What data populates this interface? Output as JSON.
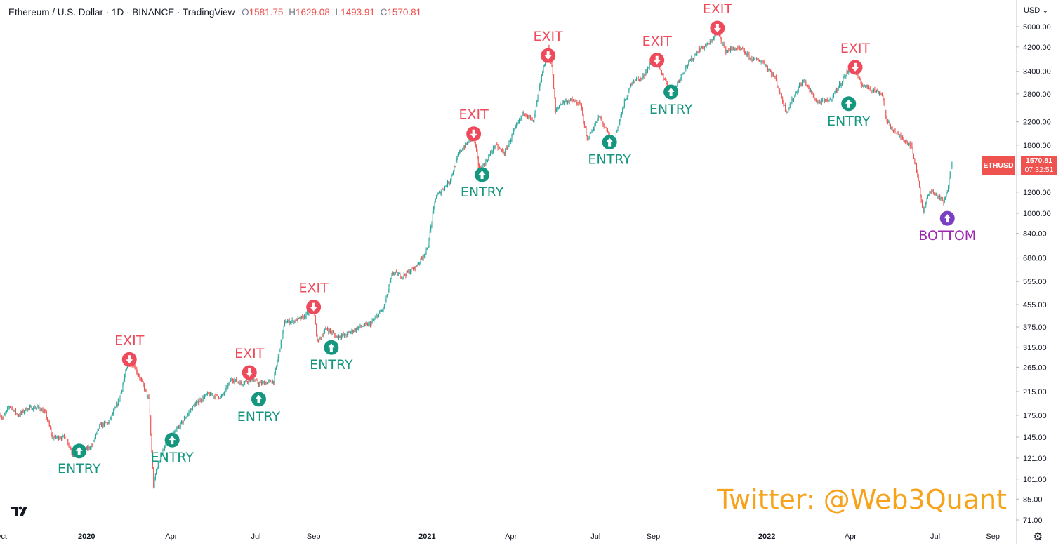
{
  "header": {
    "title": "Ethereum / U.S. Dollar · 1D · BINANCE · TradingView",
    "ohlc": [
      {
        "k": "O",
        "v": "1581.75"
      },
      {
        "k": "H",
        "v": "1629.08"
      },
      {
        "k": "L",
        "v": "1493.91"
      },
      {
        "k": "C",
        "v": "1570.81"
      }
    ]
  },
  "price_axis": {
    "currency": "USD",
    "last_symbol": "ETHUSD",
    "last_price": "1570.81",
    "countdown": "07:32:51"
  },
  "watermark": "Twitter: @Web3Quant",
  "colors": {
    "up": "#26a69a",
    "down": "#ef5350",
    "exit": "#ef4a5b",
    "entry": "#14967f",
    "bottom": "#7b3fc4",
    "bottom_text": "#9c27b0",
    "watermark": "#f7a21b"
  },
  "icons": {
    "logo": "tradingview-logo-icon",
    "settings": "gear-icon"
  },
  "chart_data": {
    "type": "candlestick",
    "title": "Ethereum / U.S. Dollar · 1D · BINANCE · TradingView",
    "y_scale": "log",
    "ylim": [
      71,
      5000
    ],
    "xlim": [
      "2019-09-30",
      "2022-09-25"
    ],
    "y_ticks": [
      "5000.00",
      "4200.00",
      "3400.00",
      "2800.00",
      "2200.00",
      "1800.00",
      "1200.00",
      "1000.00",
      "840.00",
      "680.00",
      "555.00",
      "455.00",
      "375.00",
      "315.00",
      "265.00",
      "215.00",
      "175.00",
      "145.00",
      "121.00",
      "101.00",
      "85.00",
      "71.00"
    ],
    "x_ticks": [
      {
        "date": "2019-10-01",
        "label": "Oct"
      },
      {
        "date": "2020-01-01",
        "label": "2020"
      },
      {
        "date": "2020-04-01",
        "label": "Apr"
      },
      {
        "date": "2020-07-01",
        "label": "Jul"
      },
      {
        "date": "2020-09-01",
        "label": "Sep"
      },
      {
        "date": "2021-01-01",
        "label": "2021"
      },
      {
        "date": "2021-04-01",
        "label": "Apr"
      },
      {
        "date": "2021-07-01",
        "label": "Jul"
      },
      {
        "date": "2021-09-01",
        "label": "Sep"
      },
      {
        "date": "2022-01-01",
        "label": "2022"
      },
      {
        "date": "2022-04-01",
        "label": "Apr"
      },
      {
        "date": "2022-07-01",
        "label": "Jul"
      },
      {
        "date": "2022-09-01",
        "label": "Sep"
      }
    ],
    "price_path": [
      [
        "2019-09-30",
        176
      ],
      [
        "2019-10-03",
        170
      ],
      [
        "2019-10-10",
        190
      ],
      [
        "2019-10-20",
        175
      ],
      [
        "2019-10-28",
        185
      ],
      [
        "2019-11-10",
        188
      ],
      [
        "2019-11-18",
        178
      ],
      [
        "2019-11-25",
        145
      ],
      [
        "2019-12-10",
        145
      ],
      [
        "2019-12-17",
        125
      ],
      [
        "2019-12-28",
        128
      ],
      [
        "2020-01-07",
        135
      ],
      [
        "2020-01-15",
        160
      ],
      [
        "2020-01-25",
        165
      ],
      [
        "2020-02-05",
        200
      ],
      [
        "2020-02-14",
        270
      ],
      [
        "2020-02-20",
        275
      ],
      [
        "2020-03-01",
        230
      ],
      [
        "2020-03-08",
        200
      ],
      [
        "2020-03-12",
        110
      ],
      [
        "2020-03-13",
        95
      ],
      [
        "2020-03-16",
        110
      ],
      [
        "2020-03-25",
        135
      ],
      [
        "2020-04-10",
        160
      ],
      [
        "2020-04-25",
        190
      ],
      [
        "2020-05-10",
        210
      ],
      [
        "2020-05-25",
        205
      ],
      [
        "2020-06-05",
        240
      ],
      [
        "2020-06-15",
        230
      ],
      [
        "2020-06-25",
        240
      ],
      [
        "2020-07-05",
        230
      ],
      [
        "2020-07-20",
        235
      ],
      [
        "2020-07-24",
        280
      ],
      [
        "2020-08-01",
        390
      ],
      [
        "2020-08-10",
        395
      ],
      [
        "2020-08-20",
        405
      ],
      [
        "2020-09-01",
        440
      ],
      [
        "2020-09-05",
        330
      ],
      [
        "2020-09-15",
        370
      ],
      [
        "2020-09-25",
        345
      ],
      [
        "2020-10-05",
        350
      ],
      [
        "2020-10-20",
        375
      ],
      [
        "2020-11-01",
        385
      ],
      [
        "2020-11-15",
        440
      ],
      [
        "2020-11-25",
        600
      ],
      [
        "2020-12-05",
        580
      ],
      [
        "2020-12-20",
        630
      ],
      [
        "2021-01-01",
        730
      ],
      [
        "2021-01-10",
        1150
      ],
      [
        "2021-01-15",
        1200
      ],
      [
        "2021-01-25",
        1320
      ],
      [
        "2021-02-05",
        1700
      ],
      [
        "2021-02-20",
        1950
      ],
      [
        "2021-02-26",
        1450
      ],
      [
        "2021-03-05",
        1560
      ],
      [
        "2021-03-15",
        1800
      ],
      [
        "2021-03-25",
        1680
      ],
      [
        "2021-04-05",
        2050
      ],
      [
        "2021-04-15",
        2400
      ],
      [
        "2021-04-25",
        2200
      ],
      [
        "2021-05-05",
        3400
      ],
      [
        "2021-05-11",
        4150
      ],
      [
        "2021-05-15",
        3600
      ],
      [
        "2021-05-19",
        2400
      ],
      [
        "2021-05-25",
        2600
      ],
      [
        "2021-06-05",
        2650
      ],
      [
        "2021-06-15",
        2550
      ],
      [
        "2021-06-22",
        1880
      ],
      [
        "2021-07-05",
        2300
      ],
      [
        "2021-07-20",
        1820
      ],
      [
        "2021-08-01",
        2600
      ],
      [
        "2021-08-10",
        3150
      ],
      [
        "2021-08-20",
        3200
      ],
      [
        "2021-09-03",
        3900
      ],
      [
        "2021-09-08",
        3450
      ],
      [
        "2021-09-21",
        2800
      ],
      [
        "2021-10-05",
        3500
      ],
      [
        "2021-10-20",
        4100
      ],
      [
        "2021-11-01",
        4350
      ],
      [
        "2021-11-09",
        4800
      ],
      [
        "2021-11-18",
        4050
      ],
      [
        "2021-11-26",
        4150
      ],
      [
        "2021-12-05",
        4100
      ],
      [
        "2021-12-15",
        3800
      ],
      [
        "2021-12-28",
        3700
      ],
      [
        "2022-01-10",
        3200
      ],
      [
        "2022-01-22",
        2400
      ],
      [
        "2022-02-05",
        3000
      ],
      [
        "2022-02-10",
        3150
      ],
      [
        "2022-02-24",
        2600
      ],
      [
        "2022-03-10",
        2650
      ],
      [
        "2022-03-29",
        3400
      ],
      [
        "2022-04-05",
        3480
      ],
      [
        "2022-04-12",
        3050
      ],
      [
        "2022-04-25",
        2900
      ],
      [
        "2022-05-05",
        2800
      ],
      [
        "2022-05-10",
        2200
      ],
      [
        "2022-05-20",
        2000
      ],
      [
        "2022-06-05",
        1800
      ],
      [
        "2022-06-12",
        1400
      ],
      [
        "2022-06-18",
        1000
      ],
      [
        "2022-06-25",
        1220
      ],
      [
        "2022-07-05",
        1150
      ],
      [
        "2022-07-10",
        1100
      ],
      [
        "2022-07-14",
        1200
      ],
      [
        "2022-07-17",
        1450
      ],
      [
        "2022-07-19",
        1570.81
      ]
    ],
    "annotations": [
      {
        "label": "EXIT",
        "kind": "exit",
        "date": "2020-02-16",
        "price": 280
      },
      {
        "label": "EXIT",
        "kind": "exit",
        "date": "2020-06-24",
        "price": 250
      },
      {
        "label": "EXIT",
        "kind": "exit",
        "date": "2020-09-01",
        "price": 440
      },
      {
        "label": "EXIT",
        "kind": "exit",
        "date": "2021-02-20",
        "price": 1960
      },
      {
        "label": "EXIT",
        "kind": "exit",
        "date": "2021-05-11",
        "price": 3850
      },
      {
        "label": "EXIT",
        "kind": "exit",
        "date": "2021-09-05",
        "price": 3700
      },
      {
        "label": "EXIT",
        "kind": "exit",
        "date": "2021-11-09",
        "price": 4880
      },
      {
        "label": "EXIT",
        "kind": "exit",
        "date": "2022-04-06",
        "price": 3480
      },
      {
        "label": "ENTRY",
        "kind": "entry",
        "date": "2019-12-24",
        "price": 131
      },
      {
        "label": "ENTRY",
        "kind": "entry",
        "date": "2020-04-02",
        "price": 144
      },
      {
        "label": "ENTRY",
        "kind": "entry",
        "date": "2020-07-04",
        "price": 205
      },
      {
        "label": "ENTRY",
        "kind": "entry",
        "date": "2020-09-20",
        "price": 320
      },
      {
        "label": "ENTRY",
        "kind": "entry",
        "date": "2021-03-01",
        "price": 1420
      },
      {
        "label": "ENTRY",
        "kind": "entry",
        "date": "2021-07-16",
        "price": 1880
      },
      {
        "label": "ENTRY",
        "kind": "entry",
        "date": "2021-09-20",
        "price": 2900
      },
      {
        "label": "ENTRY",
        "kind": "entry",
        "date": "2022-03-30",
        "price": 2620
      },
      {
        "label": "BOTTOM",
        "kind": "bottom",
        "date": "2022-07-14",
        "price": 975
      }
    ]
  }
}
